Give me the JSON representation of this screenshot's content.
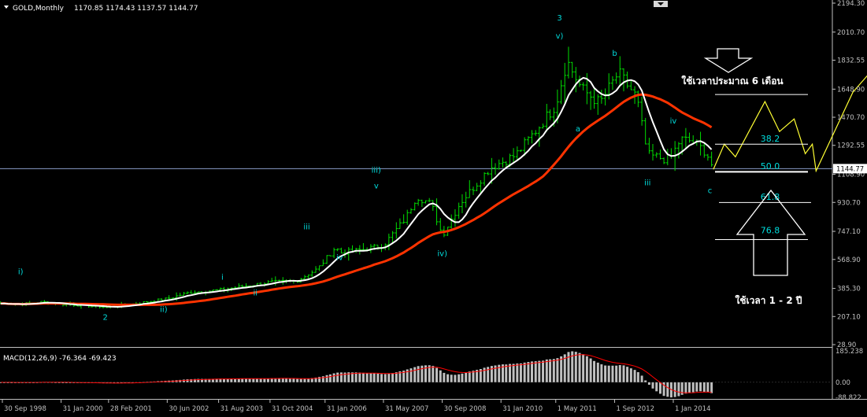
{
  "chart_data": [
    {
      "type": "candlestick",
      "symbol_label": "GOLD,Monthly",
      "ohlc": [
        "1170.85",
        "1174.43",
        "1137.57",
        "1144.77"
      ],
      "current_price": 1144.77,
      "current_price_label": "1144.77",
      "ylim": [
        28.9,
        2194.3
      ],
      "yticks": [
        "2194.30",
        "2010.70",
        "1832.55",
        "1648.90",
        "1470.70",
        "1292.55",
        "1108.90",
        "930.70",
        "747.10",
        "568.90",
        "385.30",
        "207.10",
        "28.90"
      ],
      "x_dates": [
        "30 Sep 1998",
        "31 Jan 2000",
        "28 Feb 2001",
        "30 Jun 2002",
        "31 Aug 2003",
        "31 Oct 2004",
        "31 Jan 2006",
        "31 May 2007",
        "30 Sep 2008",
        "31 Jan 2010",
        "1 May 2011",
        "1 Sep 2012",
        "1 Jan 2014"
      ],
      "price_path": [
        [
          "1998-09-30",
          290
        ],
        [
          "1999-03-01",
          285
        ],
        [
          "1999-09-01",
          300
        ],
        [
          "2000-01-31",
          285
        ],
        [
          "2000-06-01",
          280
        ],
        [
          "2001-02-28",
          265
        ],
        [
          "2001-09-01",
          285
        ],
        [
          "2002-06-30",
          320
        ],
        [
          "2003-01-01",
          360
        ],
        [
          "2003-08-31",
          375
        ],
        [
          "2004-04-01",
          400
        ],
        [
          "2004-10-31",
          425
        ],
        [
          "2005-06-01",
          430
        ],
        [
          "2005-12-01",
          510
        ],
        [
          "2006-05-01",
          650
        ],
        [
          "2006-06-01",
          610
        ],
        [
          "2006-12-01",
          630
        ],
        [
          "2007-05-31",
          660
        ],
        [
          "2007-12-01",
          830
        ],
        [
          "2008-03-01",
          970
        ],
        [
          "2008-07-01",
          920
        ],
        [
          "2008-10-01",
          720
        ],
        [
          "2009-03-01",
          930
        ],
        [
          "2009-11-01",
          1150
        ],
        [
          "2010-06-01",
          1230
        ],
        [
          "2010-12-01",
          1400
        ],
        [
          "2011-05-01",
          1550
        ],
        [
          "2011-08-01",
          1830
        ],
        [
          "2011-12-01",
          1650
        ],
        [
          "2012-05-01",
          1560
        ],
        [
          "2012-10-01",
          1750
        ],
        [
          "2012-12-01",
          1690
        ],
        [
          "2013-03-01",
          1600
        ],
        [
          "2013-06-01",
          1230
        ],
        [
          "2013-12-01",
          1200
        ],
        [
          "2014-03-01",
          1330
        ],
        [
          "2014-06-01",
          1320
        ],
        [
          "2014-10-01",
          1250
        ],
        [
          "2014-11-30",
          1145
        ]
      ],
      "ma_fast_label": "white moving average",
      "ma_slow_label": "red moving average",
      "wave_labels": [
        {
          "text": "i)",
          "date": "1999-03-01",
          "price": 475
        },
        {
          "text": "2",
          "date": "2001-02-01",
          "price": 185
        },
        {
          "text": "ii)",
          "date": "2002-06-01",
          "price": 235
        },
        {
          "text": "iii",
          "date": "2005-09-01",
          "price": 760
        },
        {
          "text": "i",
          "date": "2003-10-01",
          "price": 440
        },
        {
          "text": "ii",
          "date": "2004-07-01",
          "price": 340
        },
        {
          "text": "iv",
          "date": "2006-06-01",
          "price": 565
        },
        {
          "text": "iii)",
          "date": "2007-04-01",
          "price": 1120
        },
        {
          "text": "v",
          "date": "2007-04-01",
          "price": 1020
        },
        {
          "text": "iv)",
          "date": "2008-10-01",
          "price": 590
        },
        {
          "text": "3",
          "date": "2011-06-01",
          "price": 2085
        },
        {
          "text": "v)",
          "date": "2011-06-01",
          "price": 1970
        },
        {
          "text": "a",
          "date": "2011-11-01",
          "price": 1380
        },
        {
          "text": "b",
          "date": "2012-09-01",
          "price": 1860
        },
        {
          "text": "iii",
          "date": "2013-06-01",
          "price": 1040
        },
        {
          "text": "iv",
          "date": "2014-01-01",
          "price": 1430
        },
        {
          "text": "c",
          "date": "2014-11-01",
          "price": 990
        }
      ],
      "fib_levels": [
        "38.2",
        "50.0",
        "61.8",
        "76.8"
      ],
      "annotations": [
        "ใช้เวลาประมาณ  6 เดือน",
        "ใช้เวลา  1 - 2  ปี"
      ],
      "projection": [
        [
          "2014-11-30",
          1140
        ],
        [
          "2015-03-01",
          1300
        ],
        [
          "2015-06-01",
          1220
        ],
        [
          "2016-02-01",
          1570
        ],
        [
          "2016-06-01",
          1380
        ],
        [
          "2016-10-01",
          1460
        ],
        [
          "2017-01-01",
          1240
        ],
        [
          "2017-03-01",
          1300
        ],
        [
          "2017-04-01",
          1130
        ],
        [
          "2018-02-01",
          1630
        ],
        [
          "2019-04-01",
          2000
        ]
      ],
      "colors": {
        "bars": "#00dd00",
        "ma_fast": "#ffffff",
        "ma_slow": "#ff3300",
        "projection": "#ffff33",
        "labels": "#00dddd",
        "text": "#ffffff",
        "axis": "#c0c0c0",
        "hline": "#8a9cc8"
      }
    },
    {
      "type": "bar",
      "indicator_label": "MACD(12,26,9)",
      "main_value": "-76.364",
      "signal_value": "-69.423",
      "ylim": [
        -88.822,
        185.238
      ],
      "yticks": [
        "185.238",
        "0.00",
        "-88.822"
      ],
      "colors": {
        "histogram": "#c0c0c0",
        "signal": "#ff0000"
      }
    }
  ]
}
